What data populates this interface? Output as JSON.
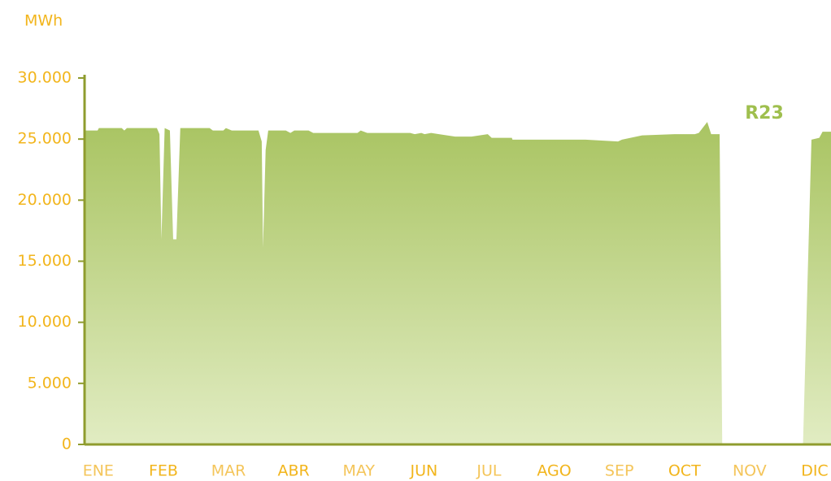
{
  "chart_data": {
    "type": "area",
    "y_label": "MWh",
    "annotation": "R23",
    "color": "#a9c462",
    "x": [
      -0.21,
      -0.01,
      0.01,
      0.36,
      0.4,
      0.44,
      0.9,
      0.94,
      0.97,
      1.02,
      1.1,
      1.15,
      1.2,
      1.26,
      1.71,
      1.76,
      1.92,
      1.96,
      2.05,
      2.46,
      2.51,
      2.53,
      2.57,
      2.61,
      2.88,
      2.95,
      3.01,
      3.23,
      3.3,
      3.98,
      4.03,
      4.13,
      4.79,
      4.86,
      4.96,
      5.01,
      5.11,
      5.23,
      5.48,
      5.73,
      5.98,
      6.04,
      6.35,
      6.36,
      7.23,
      7.48,
      7.98,
      8.04,
      8.35,
      8.85,
      9.16,
      9.22,
      9.35,
      9.41,
      9.54,
      9.58,
      10.82,
      10.95,
      11.07,
      11.12,
      11.25
    ],
    "values": [
      25700,
      25700,
      25900,
      25900,
      25700,
      25900,
      25900,
      25400,
      16800,
      25900,
      25700,
      16800,
      16800,
      25900,
      25900,
      25700,
      25700,
      25900,
      25700,
      25700,
      24800,
      16100,
      24100,
      25700,
      25700,
      25500,
      25700,
      25700,
      25500,
      25500,
      25700,
      25500,
      25500,
      25400,
      25500,
      25400,
      25500,
      25400,
      25200,
      25200,
      25400,
      25100,
      25100,
      24950,
      24950,
      24950,
      24800,
      24950,
      25300,
      25400,
      25400,
      25500,
      26400,
      25400,
      25400,
      0,
      0,
      24950,
      25100,
      25600,
      25600
    ],
    "xlim": [
      -0.21,
      11.25
    ],
    "xticks": [
      {
        "value": 0,
        "label": "ENE"
      },
      {
        "value": 1,
        "label": "FEB"
      },
      {
        "value": 2,
        "label": "MAR"
      },
      {
        "value": 3,
        "label": "ABR"
      },
      {
        "value": 4,
        "label": "MAY"
      },
      {
        "value": 5,
        "label": "JUN"
      },
      {
        "value": 6,
        "label": "JUL"
      },
      {
        "value": 7,
        "label": "AGO"
      },
      {
        "value": 8,
        "label": "SEP"
      },
      {
        "value": 9,
        "label": "OCT"
      },
      {
        "value": 10,
        "label": "NOV"
      },
      {
        "value": 11,
        "label": "DIC"
      }
    ],
    "ylim": [
      0,
      30000
    ],
    "yticks": [
      0,
      {
        "value": 5000,
        "label": "5.000"
      },
      {
        "value": 10000,
        "label": "10.000"
      },
      {
        "value": 15000,
        "label": "15.000"
      },
      {
        "value": 20000,
        "label": "20.000"
      },
      {
        "value": 25000,
        "label": "25.000"
      },
      {
        "value": 30000,
        "label": "30.000"
      }
    ]
  }
}
